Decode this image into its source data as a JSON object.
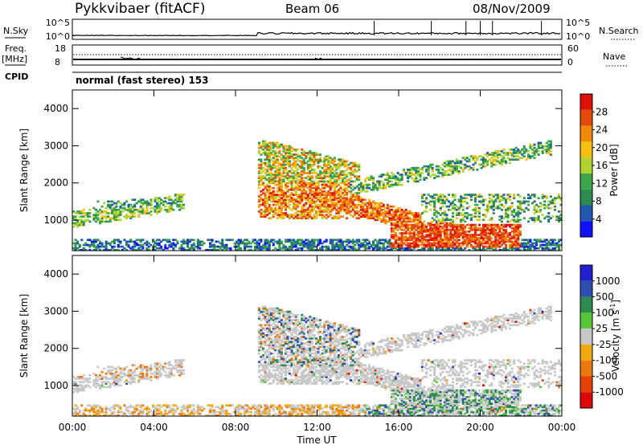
{
  "header": {
    "station": "Pykkvibaer (fitACF)",
    "beam": "Beam 06",
    "date": "08/Nov/2009"
  },
  "strip1": {
    "left_label": "N.Sky",
    "left_ticks": [
      "10^5",
      "10^0"
    ],
    "right_label": "N.Search",
    "right_ticks": [
      "10^5",
      "10^0"
    ]
  },
  "strip2": {
    "left_label_1": "Freq.",
    "left_label_2": "[MHz]",
    "left_ticks": [
      "18",
      "8"
    ],
    "right_label": "Nave",
    "right_ticks": [
      "60",
      "0"
    ]
  },
  "cpid": {
    "label": "CPID",
    "text": "normal (fast stereo) 153"
  },
  "colors": {
    "power": [
      "#1010ff",
      "#1f58b0",
      "#2d8b50",
      "#3aa84a",
      "#b2d22e",
      "#f5c010",
      "#f08a0a",
      "#e54a08",
      "#dd1008"
    ],
    "velocity": [
      "#2020d0",
      "#2f4fb0",
      "#2f8a50",
      "#56c838",
      "#c8c8c8",
      "#f2a810",
      "#ea7a10",
      "#e54008",
      "#dd0808"
    ]
  },
  "chart_data": [
    {
      "type": "heatmap",
      "name": "power",
      "ylabel": "Slant Range [km]",
      "xlim": [
        "00:00",
        "24:00"
      ],
      "ylim": [
        180,
        4500
      ],
      "y_ticks": [
        "1000",
        "2000",
        "3000",
        "4000"
      ],
      "colorbar_label": "Power [dB]",
      "colorbar_ticks": [
        "4",
        "8",
        "12",
        "16",
        "20",
        "24",
        "28"
      ],
      "colorbar_range": [
        0,
        32
      ],
      "echo_regions": [
        {
          "t_start": "00:00",
          "t_end": "05:30",
          "range_min_km": 700,
          "range_max_km": 1700,
          "level_db": "8-20"
        },
        {
          "t_start": "00:00",
          "t_end": "24:00",
          "range_min_km": 180,
          "range_max_km": 450,
          "level_db": "4-12"
        },
        {
          "t_start": "09:00",
          "t_end": "14:00",
          "range_min_km": 1000,
          "range_max_km": 3200,
          "level_db": "12-30"
        },
        {
          "t_start": "14:00",
          "t_end": "22:00",
          "range_min_km": 300,
          "range_max_km": 1300,
          "level_db": "20-32"
        },
        {
          "t_start": "15:00",
          "t_end": "23:00",
          "range_min_km": 1700,
          "range_max_km": 3000,
          "level_db": "8-20"
        }
      ]
    },
    {
      "type": "heatmap",
      "name": "velocity",
      "xlabel": "Time UT",
      "ylabel": "Slant Range [km]",
      "xlim": [
        "00:00",
        "24:00"
      ],
      "x_ticks": [
        "00:00",
        "04:00",
        "08:00",
        "12:00",
        "16:00",
        "20:00",
        "00:00"
      ],
      "ylim": [
        180,
        4500
      ],
      "y_ticks": [
        "1000",
        "2000",
        "3000",
        "4000"
      ],
      "colorbar_label": "Velocity [m s",
      "colorbar_label_sup": "-1",
      "colorbar_label_end": "]",
      "colorbar_ticks": [
        "1000",
        "500",
        "100",
        "25",
        "-25",
        "-100",
        "-500",
        "-1000"
      ]
    }
  ]
}
